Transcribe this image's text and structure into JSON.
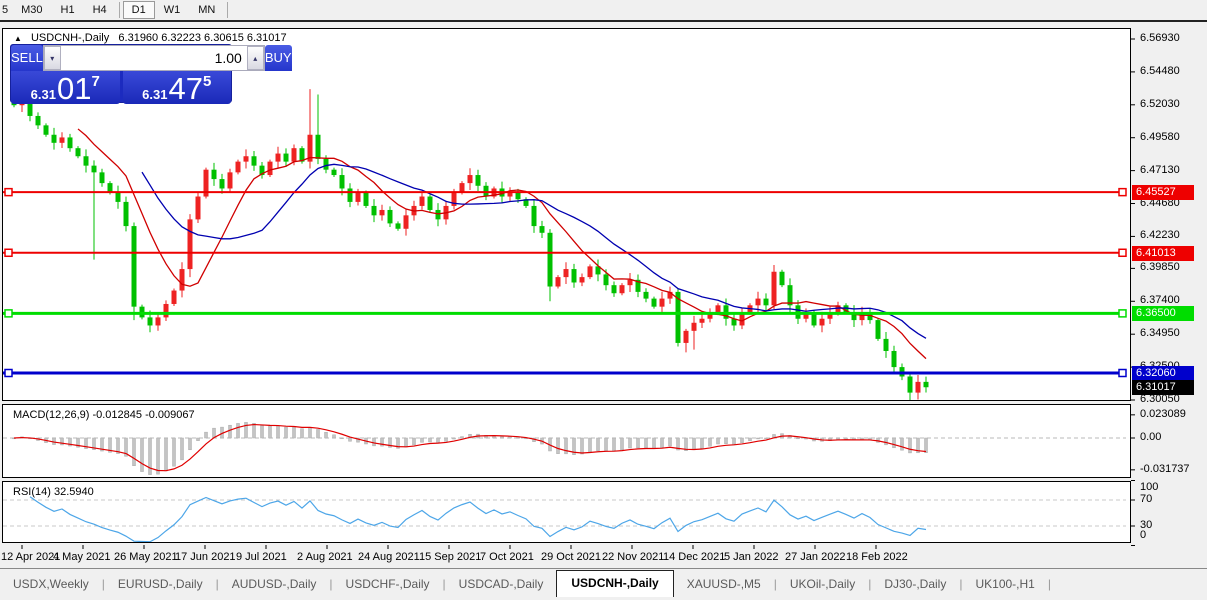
{
  "toolbar": {
    "timeframes": [
      "5",
      "M30",
      "H1",
      "H4",
      "D1",
      "W1",
      "MN"
    ],
    "active": "D1"
  },
  "header": {
    "symbol": "USDCNH-,Daily",
    "ohlc": "6.31960 6.32223 6.30615 6.31017"
  },
  "trade_panel": {
    "sell_label": "SELL",
    "buy_label": "BUY",
    "volume": "1.00",
    "sell_price": {
      "prefix": "6.31",
      "main": "01",
      "sup": "7"
    },
    "buy_price": {
      "prefix": "6.31",
      "main": "47",
      "sup": "5"
    },
    "spinner_down_icon": "▾",
    "spinner_up_icon": "▴"
  },
  "price_axis": {
    "ticks": [
      "6.56930",
      "6.54480",
      "6.52030",
      "6.49580",
      "6.47130",
      "6.44680",
      "6.42230",
      "6.39850",
      "6.37400",
      "6.34950",
      "6.32500",
      "6.30050"
    ],
    "range": {
      "top_price": 6.5693,
      "bottom_price": 6.3005
    }
  },
  "levels": [
    {
      "label": "6.45527",
      "price": 6.45527,
      "color": "#ee0000",
      "thickness": 2
    },
    {
      "label": "6.41013",
      "price": 6.41013,
      "color": "#ee0000",
      "thickness": 2
    },
    {
      "label": "6.36500",
      "price": 6.365,
      "color": "#00dd00",
      "thickness": 3
    },
    {
      "label": "6.32060",
      "price": 6.3206,
      "color": "#0000cc",
      "thickness": 3
    }
  ],
  "current_price": {
    "label": "6.31017",
    "price": 6.31017,
    "bg": "#000000"
  },
  "chart_data": {
    "type": "candlestick",
    "symbol": "USDCNH",
    "timeframe": "Daily",
    "up_color": "#ee2222",
    "down_color": "#00c000",
    "ma_fast_color": "#d00000",
    "ma_slow_color": "#0000b0",
    "first_open": 6.531,
    "closes": [
      6.52,
      6.528,
      6.512,
      6.505,
      6.498,
      6.492,
      6.496,
      6.488,
      6.482,
      6.475,
      6.47,
      6.462,
      6.455,
      6.448,
      6.43,
      6.37,
      6.362,
      6.356,
      6.362,
      6.372,
      6.382,
      6.398,
      6.435,
      6.452,
      6.472,
      6.465,
      6.458,
      6.47,
      6.478,
      6.482,
      6.475,
      6.468,
      6.478,
      6.484,
      6.478,
      6.488,
      6.478,
      6.498,
      6.48,
      6.472,
      6.468,
      6.458,
      6.448,
      6.455,
      6.445,
      6.438,
      6.442,
      6.432,
      6.428,
      6.438,
      6.445,
      6.452,
      6.442,
      6.435,
      6.445,
      6.455,
      6.462,
      6.468,
      6.46,
      6.452,
      6.458,
      6.452,
      6.455,
      6.45,
      6.445,
      6.43,
      6.425,
      6.385,
      6.392,
      6.398,
      6.388,
      6.392,
      6.4,
      6.394,
      6.386,
      6.38,
      6.386,
      6.39,
      6.381,
      6.376,
      6.37,
      6.376,
      6.381,
      6.343,
      6.352,
      6.358,
      6.361,
      6.366,
      6.371,
      6.361,
      6.356,
      6.366,
      6.371,
      6.376,
      6.371,
      6.396,
      6.386,
      6.371,
      6.361,
      6.366,
      6.356,
      6.361,
      6.366,
      6.371,
      6.366,
      6.36,
      6.366,
      6.36,
      6.346,
      6.337,
      6.325,
      6.318,
      6.306,
      6.314,
      6.31
    ],
    "wick_overrides": {
      "1": {
        "h": 6.533
      },
      "10": {
        "l": 6.405
      },
      "15": {
        "l": 6.36
      },
      "22": {
        "l": 6.392
      },
      "37": {
        "h": 6.532
      },
      "38": {
        "h": 6.528
      },
      "67": {
        "l": 6.374
      },
      "84": {
        "l": 6.336
      },
      "85": {
        "l": 6.338
      },
      "95": {
        "h": 6.401
      },
      "112": {
        "l": 6.3
      }
    }
  },
  "indicators": {
    "macd": {
      "label": "MACD(12,26,9) -0.012845 -0.009067",
      "axis_ticks": [
        {
          "label": "0.023089",
          "value": 0.023089
        },
        {
          "label": "0.00",
          "value": 0
        },
        {
          "label": "-0.031737",
          "value": -0.031737
        }
      ],
      "histogram_color": "#c4c4c4",
      "signal_color": "#e00000"
    },
    "rsi": {
      "label": "RSI(14) 32.5940",
      "axis_ticks": [
        {
          "label": "100",
          "value": 100
        },
        {
          "label": "70",
          "value": 70
        },
        {
          "label": "30",
          "value": 30
        },
        {
          "label": "0",
          "value": 0
        }
      ],
      "level_lines": [
        70,
        30
      ],
      "line_color": "#4da6e8"
    }
  },
  "date_axis": {
    "labels": [
      "12 Apr 2021",
      "4 May 2021",
      "26 May 2021",
      "17 Jun 2021",
      "9 Jul 2021",
      "2 Aug 2021",
      "24 Aug 2021",
      "15 Sep 2021",
      "7 Oct 2021",
      "29 Oct 2021",
      "22 Nov 2021",
      "14 Dec 2021",
      "5 Jan 2022",
      "27 Jan 2022",
      "18 Feb 2022"
    ]
  },
  "tabs": {
    "items": [
      "USDX,Weekly",
      "EURUSD-,Daily",
      "AUDUSD-,Daily",
      "USDCHF-,Daily",
      "USDCAD-,Daily",
      "USDCNH-,Daily",
      "XAUUSD-,M5",
      "UKOil-,Daily",
      "DJ30-,Daily",
      "UK100-,H1"
    ],
    "active_index": 5,
    "scroll_left_icon": "◄",
    "scroll_right_icon": "►"
  }
}
